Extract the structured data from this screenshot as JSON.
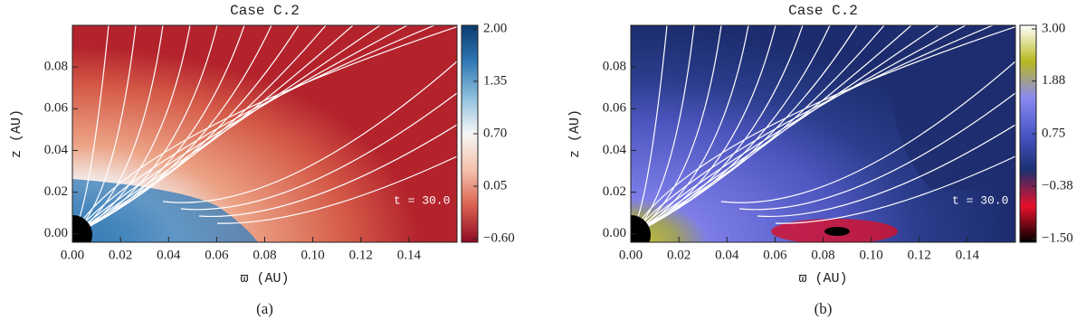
{
  "chart_data": [
    {
      "type": "heatmap",
      "title": "Case C.2",
      "x_label": "ϖ (AU)",
      "y_label": "z (AU)",
      "annotation": "t =  30.0",
      "caption": "(a)",
      "xlim": [
        0,
        0.16
      ],
      "ylim": [
        -0.004,
        0.1
      ],
      "xticks": [
        {
          "value": 0,
          "label": "0.00"
        },
        {
          "value": 0.02,
          "label": "0.02"
        },
        {
          "value": 0.04,
          "label": "0.04"
        },
        {
          "value": 0.06,
          "label": "0.06"
        },
        {
          "value": 0.08,
          "label": "0.08"
        },
        {
          "value": 0.1,
          "label": "0.10"
        },
        {
          "value": 0.12,
          "label": "0.12"
        },
        {
          "value": 0.14,
          "label": "0.14"
        }
      ],
      "yticks": [
        {
          "value": 0,
          "label": "0.00"
        },
        {
          "value": 0.02,
          "label": "0.02"
        },
        {
          "value": 0.04,
          "label": "0.04"
        },
        {
          "value": 0.06,
          "label": "0.06"
        },
        {
          "value": 0.08,
          "label": "0.08"
        }
      ],
      "colorbar_lim": [
        -0.6,
        2.0
      ],
      "colorbar_ticks": [
        {
          "value": 2.0,
          "label": "2.00"
        },
        {
          "value": 1.35,
          "label": "1.35"
        },
        {
          "value": 0.7,
          "label": "0.70"
        },
        {
          "value": 0.05,
          "label": "0.05"
        },
        {
          "value": -0.6,
          "label": "−0.60"
        }
      ],
      "colorscale": [
        "#8e0b24",
        "#d9604e",
        "#f4c2ac",
        "#f7f7f7",
        "#8fc0dd",
        "#2f78b4",
        "#0b3b70"
      ]
    },
    {
      "type": "heatmap",
      "title": "Case C.2",
      "x_label": "ϖ (AU)",
      "y_label": "z (AU)",
      "annotation": "t =  30.0",
      "caption": "(b)",
      "xlim": [
        0,
        0.16
      ],
      "ylim": [
        -0.004,
        0.1
      ],
      "xticks": [
        {
          "value": 0,
          "label": "0.00"
        },
        {
          "value": 0.02,
          "label": "0.02"
        },
        {
          "value": 0.04,
          "label": "0.04"
        },
        {
          "value": 0.06,
          "label": "0.06"
        },
        {
          "value": 0.08,
          "label": "0.08"
        },
        {
          "value": 0.1,
          "label": "0.10"
        },
        {
          "value": 0.12,
          "label": "0.12"
        },
        {
          "value": 0.14,
          "label": "0.14"
        }
      ],
      "yticks": [
        {
          "value": 0,
          "label": "0.00"
        },
        {
          "value": 0.02,
          "label": "0.02"
        },
        {
          "value": 0.04,
          "label": "0.04"
        },
        {
          "value": 0.06,
          "label": "0.06"
        },
        {
          "value": 0.08,
          "label": "0.08"
        }
      ],
      "colorbar_lim": [
        -1.5,
        3.0
      ],
      "colorbar_ticks": [
        {
          "value": 3.0,
          "label": "3.00"
        },
        {
          "value": 1.88,
          "label": "1.88"
        },
        {
          "value": 0.75,
          "label": "0.75"
        },
        {
          "value": -0.38,
          "label": "−0.38"
        },
        {
          "value": -1.5,
          "label": "−1.50"
        }
      ],
      "colorscale": [
        "#000000",
        "#e8102a",
        "#1b3070",
        "#4a56c8",
        "#8a8af0",
        "#b8b820",
        "#ffffff"
      ]
    }
  ]
}
